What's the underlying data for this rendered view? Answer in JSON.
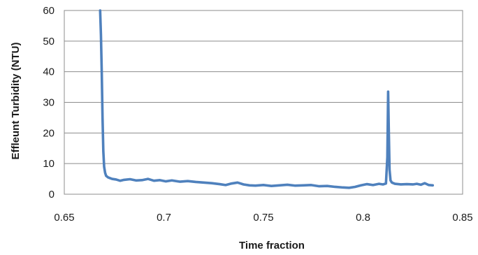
{
  "chart_data": {
    "type": "line",
    "title": "",
    "xlabel": "Time fraction",
    "ylabel": "Effleunt Turbidity (NTU)",
    "xlim": [
      0.65,
      0.85
    ],
    "ylim": [
      0,
      60
    ],
    "xticks": [
      "0.65",
      "0.7",
      "0.75",
      "0.8",
      "0.85"
    ],
    "yticks": [
      "0",
      "10",
      "20",
      "30",
      "40",
      "50",
      "60"
    ],
    "grid": true,
    "legend": "none",
    "series": [
      {
        "color": "#4F81BD",
        "x": [
          0.668,
          0.6684,
          0.6688,
          0.6692,
          0.6696,
          0.67,
          0.6705,
          0.671,
          0.672,
          0.674,
          0.676,
          0.678,
          0.68,
          0.683,
          0.686,
          0.689,
          0.692,
          0.695,
          0.698,
          0.701,
          0.704,
          0.708,
          0.712,
          0.716,
          0.72,
          0.724,
          0.728,
          0.731,
          0.734,
          0.737,
          0.74,
          0.743,
          0.746,
          0.75,
          0.754,
          0.758,
          0.762,
          0.766,
          0.77,
          0.774,
          0.778,
          0.782,
          0.786,
          0.79,
          0.793,
          0.796,
          0.799,
          0.802,
          0.805,
          0.808,
          0.81,
          0.8115,
          0.8122,
          0.8126,
          0.8129,
          0.8133,
          0.8138,
          0.8145,
          0.816,
          0.819,
          0.822,
          0.825,
          0.827,
          0.829,
          0.831,
          0.833,
          0.835
        ],
        "y": [
          60,
          52,
          40,
          25,
          14,
          9,
          7,
          6,
          5.5,
          5,
          4.8,
          4.4,
          4.7,
          4.9,
          4.5,
          4.6,
          5.0,
          4.4,
          4.6,
          4.2,
          4.5,
          4.1,
          4.3,
          4.0,
          3.8,
          3.6,
          3.3,
          3.0,
          3.5,
          3.8,
          3.2,
          2.9,
          2.8,
          3.0,
          2.7,
          2.9,
          3.1,
          2.8,
          2.9,
          3.0,
          2.6,
          2.7,
          2.4,
          2.2,
          2.1,
          2.4,
          2.9,
          3.3,
          3.0,
          3.4,
          3.2,
          3.5,
          12,
          33.5,
          22,
          8,
          4.5,
          3.8,
          3.4,
          3.2,
          3.3,
          3.2,
          3.4,
          3.1,
          3.6,
          3.0,
          2.9
        ]
      }
    ]
  }
}
